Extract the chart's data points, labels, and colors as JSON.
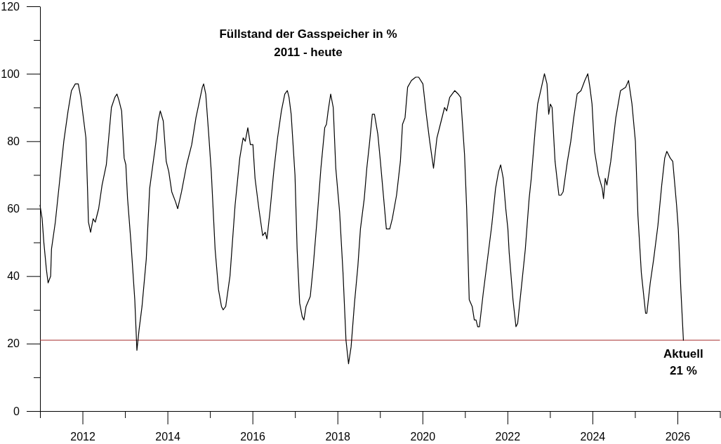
{
  "chart_data": {
    "type": "line",
    "title": "Füllstand der Gasspeicher in %",
    "subtitle": "2011 - heute",
    "xlim": [
      2011,
      2027
    ],
    "xticks": [
      {
        "value": 2011,
        "label": null
      },
      2012,
      {
        "value": 2013,
        "label": null
      },
      2014,
      {
        "value": 2015,
        "label": null
      },
      2016,
      {
        "value": 2017,
        "label": null
      },
      2018,
      {
        "value": 2019,
        "label": null
      },
      2020,
      {
        "value": 2021,
        "label": null
      },
      2022,
      {
        "value": 2023,
        "label": null
      },
      2024,
      {
        "value": 2025,
        "label": null
      },
      2026,
      {
        "value": 2027,
        "label": null
      }
    ],
    "ylim": [
      0,
      120
    ],
    "yticks": [
      0,
      {
        "value": 10,
        "label": null
      },
      20,
      {
        "value": 30,
        "label": null
      },
      40,
      {
        "value": 50,
        "label": null
      },
      60,
      {
        "value": 70,
        "label": null
      },
      80,
      {
        "value": 90,
        "label": null
      },
      100,
      {
        "value": 110,
        "label": null
      },
      120
    ],
    "x": [
      2011.0,
      2011.05,
      2011.09,
      2011.15,
      2011.19,
      2011.25,
      2011.27,
      2011.36,
      2011.46,
      2011.56,
      2011.66,
      2011.74,
      2011.83,
      2011.9,
      2011.96,
      2012.03,
      2012.08,
      2012.12,
      2012.14,
      2012.19,
      2012.25,
      2012.3,
      2012.38,
      2012.46,
      2012.56,
      2012.68,
      2012.76,
      2012.81,
      2012.86,
      2012.92,
      2012.98,
      2013.02,
      2013.06,
      2013.14,
      2013.23,
      2013.28,
      2013.33,
      2013.4,
      2013.5,
      2013.58,
      2013.73,
      2013.78,
      2013.83,
      2013.9,
      2013.97,
      2014.03,
      2014.1,
      2014.19,
      2014.24,
      2014.33,
      2014.45,
      2014.57,
      2014.67,
      2014.77,
      2014.82,
      2014.85,
      2014.9,
      2014.97,
      2015.03,
      2015.12,
      2015.2,
      2015.27,
      2015.31,
      2015.37,
      2015.47,
      2015.59,
      2015.7,
      2015.78,
      2015.83,
      2015.89,
      2015.95,
      2016.01,
      2016.06,
      2016.15,
      2016.24,
      2016.3,
      2016.34,
      2016.41,
      2016.5,
      2016.59,
      2016.68,
      2016.76,
      2016.82,
      2016.86,
      2016.91,
      2017.0,
      2017.05,
      2017.11,
      2017.17,
      2017.21,
      2017.26,
      2017.36,
      2017.43,
      2017.52,
      2017.61,
      2017.7,
      2017.74,
      2017.78,
      2017.84,
      2017.9,
      2017.96,
      2018.05,
      2018.13,
      2018.2,
      2018.26,
      2018.32,
      2018.4,
      2018.48,
      2018.54,
      2018.63,
      2018.69,
      2018.75,
      2018.82,
      2018.87,
      2018.95,
      2019.01,
      2019.08,
      2019.15,
      2019.23,
      2019.29,
      2019.39,
      2019.48,
      2019.53,
      2019.59,
      2019.65,
      2019.74,
      2019.84,
      2019.91,
      2020.01,
      2020.09,
      2020.17,
      2020.26,
      2020.34,
      2020.44,
      2020.52,
      2020.57,
      2020.64,
      2020.76,
      2020.84,
      2020.9,
      2020.99,
      2021.04,
      2021.1,
      2021.17,
      2021.22,
      2021.26,
      2021.3,
      2021.34,
      2021.43,
      2021.55,
      2021.63,
      2021.72,
      2021.79,
      2021.84,
      2021.9,
      2021.96,
      2022.01,
      2022.04,
      2022.13,
      2022.2,
      2022.24,
      2022.33,
      2022.42,
      2022.51,
      2022.56,
      2022.65,
      2022.71,
      2022.8,
      2022.87,
      2022.93,
      2022.97,
      2023.01,
      2023.05,
      2023.12,
      2023.21,
      2023.26,
      2023.31,
      2023.41,
      2023.49,
      2023.56,
      2023.64,
      2023.73,
      2023.82,
      2023.89,
      2023.94,
      2023.99,
      2024.05,
      2024.14,
      2024.23,
      2024.26,
      2024.3,
      2024.34,
      2024.43,
      2024.55,
      2024.66,
      2024.78,
      2024.85,
      2024.93,
      2025.01,
      2025.07,
      2025.15,
      2025.25,
      2025.28,
      2025.36,
      2025.44,
      2025.54,
      2025.63,
      2025.7,
      2025.75,
      2025.83,
      2025.89,
      2025.98,
      2026.02,
      2026.08,
      2026.14
    ],
    "series": [
      {
        "color": "#000000",
        "values": [
          61,
          57,
          50,
          42,
          38,
          40,
          48,
          56,
          68,
          80,
          89,
          95,
          97,
          97,
          93,
          86,
          81,
          65,
          56,
          53,
          57,
          56,
          60,
          67,
          73,
          90,
          93,
          94,
          92,
          89,
          75,
          73,
          63,
          50,
          33,
          18,
          24,
          31,
          45,
          66,
          80,
          86,
          89,
          86,
          74,
          71,
          65,
          62,
          60,
          65,
          73,
          79,
          87,
          93,
          96,
          97,
          94,
          82,
          71,
          48,
          36,
          31,
          30,
          31,
          40,
          61,
          75,
          81,
          80,
          84,
          79,
          79,
          69,
          60,
          52,
          53,
          51,
          59,
          71,
          81,
          89,
          94,
          95,
          93,
          88,
          70,
          48,
          32,
          28,
          27,
          31,
          34,
          43,
          57,
          72,
          84,
          85,
          89,
          94,
          90,
          72,
          59,
          41,
          21,
          14,
          19,
          32,
          43,
          54,
          63,
          72,
          79,
          88,
          88,
          82,
          74,
          64,
          54,
          54,
          57,
          64,
          74,
          85,
          87,
          96,
          98,
          99,
          99,
          97,
          88,
          80,
          72,
          81,
          86,
          90,
          89,
          93,
          95,
          94,
          93,
          76,
          60,
          33,
          31,
          27,
          27,
          25,
          25,
          35,
          47,
          55,
          66,
          71,
          73,
          69,
          60,
          54,
          47,
          33,
          25,
          26,
          37,
          48,
          63,
          69,
          83,
          91,
          96,
          100,
          97,
          88,
          91,
          90,
          74,
          64,
          64,
          65,
          74,
          80,
          87,
          94,
          95,
          98,
          100,
          96,
          91,
          77,
          70,
          66,
          63,
          69,
          67,
          74,
          87,
          95,
          96,
          98,
          91,
          80,
          58,
          41,
          29,
          29,
          38,
          45,
          55,
          67,
          75,
          77,
          75,
          74,
          61,
          54,
          36,
          21
        ]
      }
    ],
    "ref_lines": [
      {
        "axis": "y",
        "value": 21,
        "color": "#a52a2a"
      }
    ],
    "annotations": [
      {
        "text": "Aktuell\n21 %",
        "x": 2026.14,
        "y": 21
      }
    ]
  }
}
